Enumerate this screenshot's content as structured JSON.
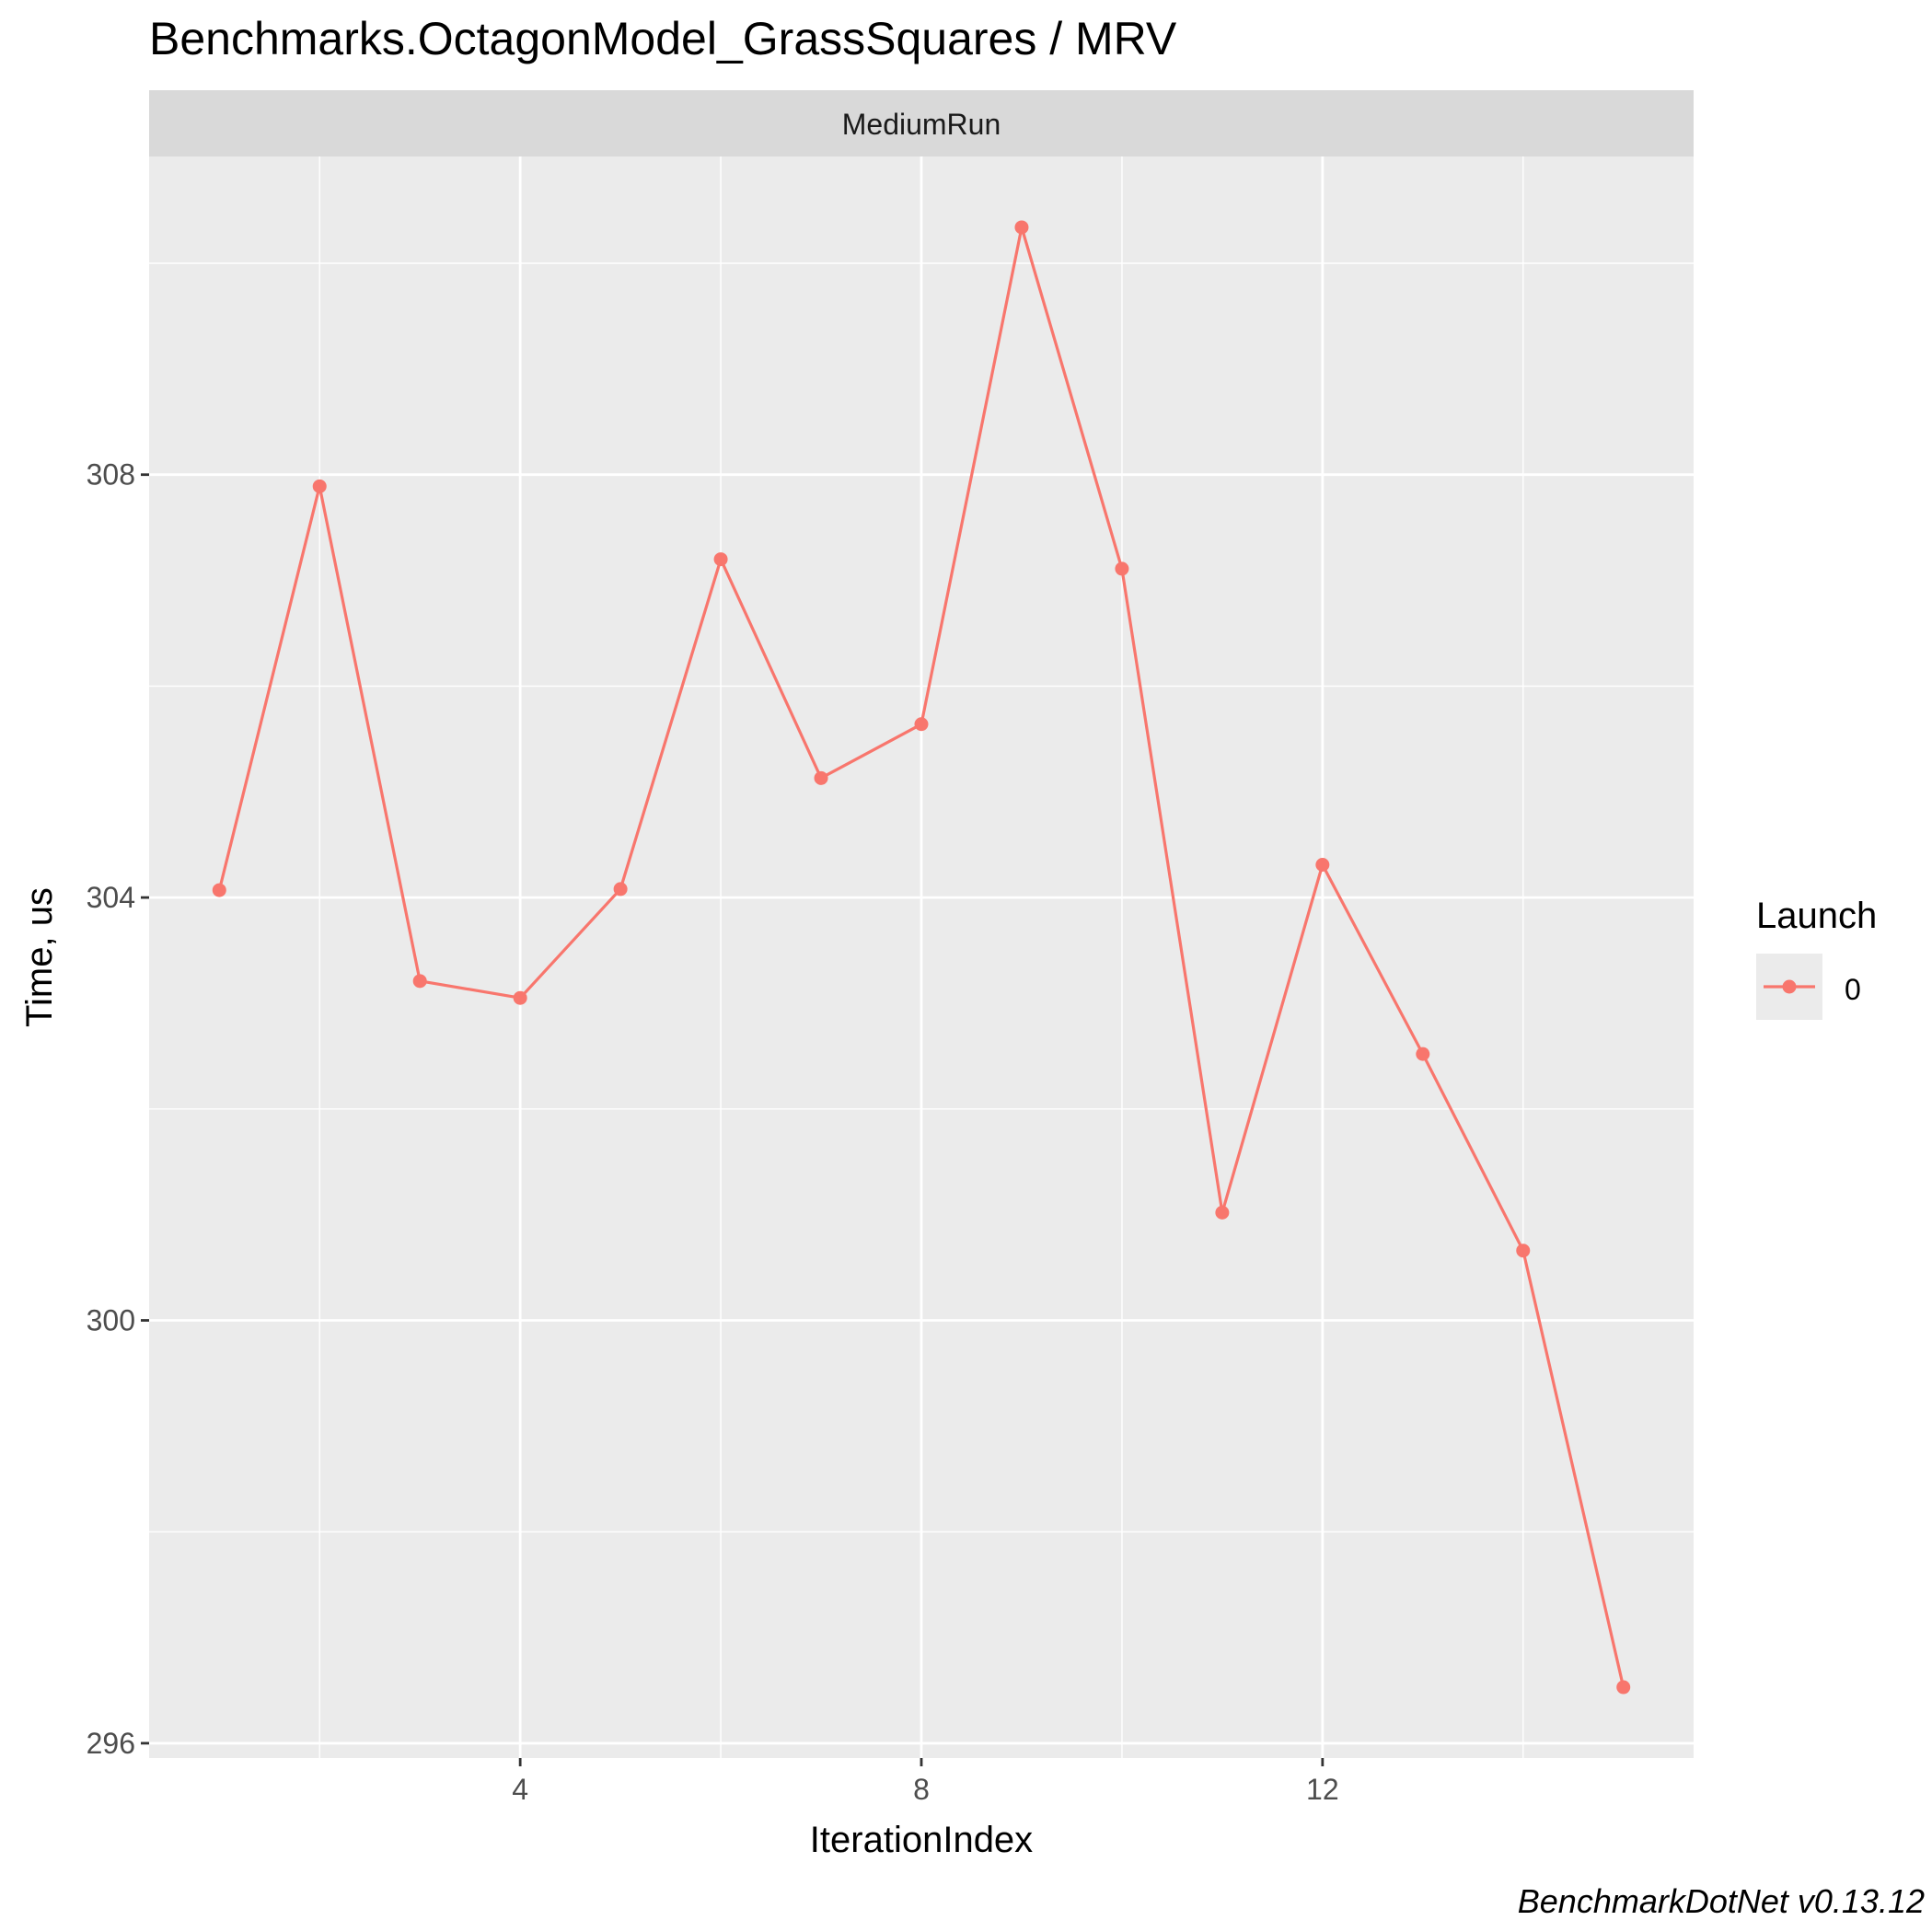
{
  "chart_data": {
    "type": "line",
    "title": "Benchmarks.OctagonModel_GrassSquares / MRV",
    "facet_label": "MediumRun",
    "xlabel": "IterationIndex",
    "ylabel": "Time, us",
    "caption": "BenchmarkDotNet v0.13.12",
    "xlim": [
      0.3,
      15.7
    ],
    "ylim": [
      295.86,
      311.01
    ],
    "x_ticks": [
      4,
      8,
      12
    ],
    "x_tick_labels": [
      "4",
      "8",
      "12"
    ],
    "y_ticks": [
      296,
      300,
      304,
      308
    ],
    "y_tick_labels": [
      "296",
      "300",
      "304",
      "308"
    ],
    "grid": true,
    "legend": {
      "title": "Launch",
      "position": "right"
    },
    "series": [
      {
        "name": "0",
        "color": "#F8766D",
        "x": [
          1,
          2,
          3,
          4,
          5,
          6,
          7,
          8,
          9,
          10,
          11,
          12,
          13,
          14,
          15
        ],
        "values": [
          304.07,
          307.89,
          303.21,
          303.05,
          304.08,
          307.2,
          305.13,
          305.64,
          310.34,
          307.11,
          301.02,
          304.31,
          302.52,
          300.66,
          296.53
        ]
      }
    ]
  }
}
